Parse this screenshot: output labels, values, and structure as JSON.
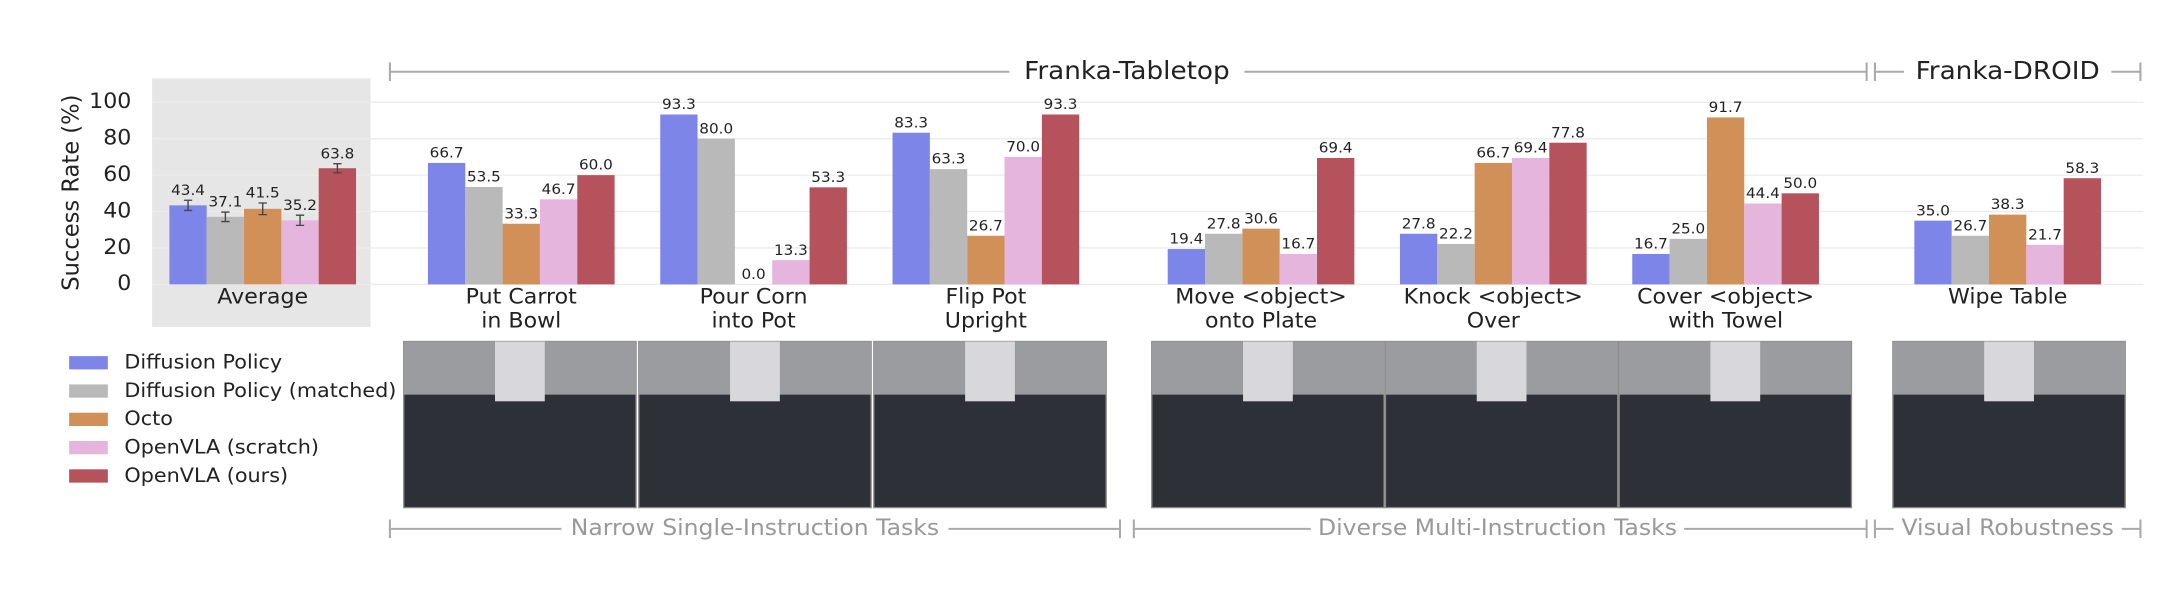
{
  "chart_data": {
    "type": "bar",
    "ylabel": "Success Rate (%)",
    "ylim": [
      0,
      100
    ],
    "yticks": [
      0,
      20,
      40,
      60,
      80,
      100
    ],
    "grid": true,
    "categories": [
      [
        "Average"
      ],
      [
        "Put Carrot",
        "in Bowl"
      ],
      [
        "Pour Corn",
        "into Pot"
      ],
      [
        "Flip Pot",
        "Upright"
      ],
      [
        "Move <object>",
        "onto Plate"
      ],
      [
        "Knock <object>",
        "Over"
      ],
      [
        "Cover <object>",
        "with Towel"
      ],
      [
        "Wipe Table"
      ]
    ],
    "series": [
      {
        "name": "Diffusion Policy",
        "color": "#7d86e8",
        "values": [
          43.4,
          66.7,
          93.3,
          83.3,
          19.4,
          27.8,
          16.7,
          35.0
        ],
        "value_labels": [
          "43.4",
          "66.7",
          "93.3",
          "83.3",
          "19.4",
          "27.8",
          "16.7",
          "35.0"
        ],
        "errors": [
          2.8,
          null,
          null,
          null,
          null,
          null,
          null,
          null
        ]
      },
      {
        "name": "Diffusion Policy (matched)",
        "color": "#b9b9b9",
        "values": [
          37.1,
          53.5,
          80.0,
          63.3,
          27.8,
          22.2,
          25.0,
          26.7
        ],
        "value_labels": [
          "37.1",
          "53.5",
          "80.0",
          "63.3",
          "27.8",
          "22.2",
          "25.0",
          "26.7"
        ],
        "errors": [
          2.6,
          null,
          null,
          null,
          null,
          null,
          null,
          null
        ]
      },
      {
        "name": "Octo",
        "color": "#d19058",
        "values": [
          41.5,
          33.3,
          0.0,
          26.7,
          30.6,
          66.7,
          91.7,
          38.3
        ],
        "value_labels": [
          "41.5",
          "33.3",
          "0.0",
          "26.7",
          "30.6",
          "66.7",
          "91.7",
          "38.3"
        ],
        "errors": [
          3.2,
          null,
          null,
          null,
          null,
          null,
          null,
          null
        ]
      },
      {
        "name": "OpenVLA (scratch)",
        "color": "#e6b5dd",
        "values": [
          35.2,
          46.7,
          13.3,
          70.0,
          16.7,
          69.4,
          44.4,
          21.7
        ],
        "value_labels": [
          "35.2",
          "46.7",
          "13.3",
          "70.0",
          "16.7",
          "69.4",
          "44.4",
          "21.7"
        ],
        "errors": [
          2.8,
          null,
          null,
          null,
          null,
          null,
          null,
          null
        ]
      },
      {
        "name": "OpenVLA (ours)",
        "color": "#b5525b",
        "values": [
          63.8,
          60.0,
          53.3,
          93.3,
          69.4,
          77.8,
          50.0,
          58.3
        ],
        "value_labels": [
          "63.8",
          "60.0",
          "53.3",
          "93.3",
          "69.4",
          "77.8",
          "50.0",
          "58.3"
        ],
        "errors": [
          2.5,
          null,
          null,
          null,
          null,
          null,
          null,
          null
        ]
      }
    ],
    "top_groups": [
      "Franka-Tabletop",
      "Franka-DROID"
    ],
    "bottom_groups": [
      "Narrow Single-Instruction Tasks",
      "Diverse Multi-Instruction Tasks",
      "Visual Robustness"
    ]
  }
}
